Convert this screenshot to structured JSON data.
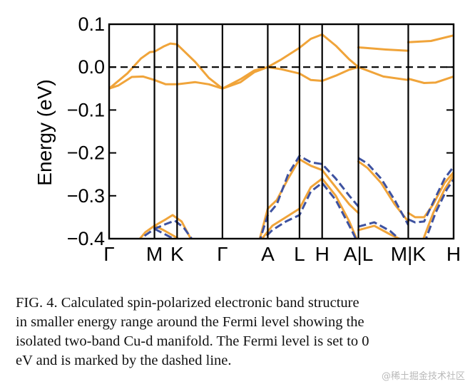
{
  "chart_data": {
    "type": "line",
    "ylabel": "Energy (eV)",
    "ylim": [
      -0.4,
      0.1
    ],
    "y_ticks": [
      "0.1",
      "0.0",
      "−0.1",
      "−0.2",
      "−0.3",
      "−0.4"
    ],
    "y_tick_values": [
      0.1,
      0.0,
      -0.1,
      -0.2,
      -0.3,
      -0.4
    ],
    "x_ticks": [
      "Γ",
      "M",
      "K",
      "Γ",
      "A",
      "L",
      "H",
      "A|L",
      "M|K",
      "H"
    ],
    "x_tick_values": [
      0,
      1,
      1.5,
      2.5,
      3.5,
      4.2,
      4.7,
      5.5,
      6.6,
      7.6
    ],
    "kpath_segments": [
      "Γ-M-K-Γ-A-L-H-A",
      "L-M",
      "K-H"
    ],
    "fermi_level": 0.0,
    "fermi_line_style": "dashed",
    "colors": {
      "spin_up": "#f0a43a",
      "spin_down": "#3e52a0",
      "frame": "#000000"
    },
    "series": [
      {
        "style": "solid",
        "color": "#f0a43a",
        "values": [
          [
            0,
            -0.05
          ],
          [
            0.2,
            -0.043
          ],
          [
            0.5,
            -0.023
          ],
          [
            0.75,
            -0.022
          ],
          [
            1,
            -0.03
          ],
          [
            1.25,
            -0.04
          ],
          [
            1.5,
            -0.04
          ],
          [
            1.9,
            -0.035
          ],
          [
            2.2,
            -0.04
          ],
          [
            2.5,
            -0.05
          ],
          [
            2.9,
            -0.035
          ],
          [
            3.2,
            -0.012
          ],
          [
            3.5,
            0
          ],
          [
            3.8,
            -0.005
          ],
          [
            4.2,
            -0.015
          ],
          [
            4.45,
            -0.03
          ],
          [
            4.7,
            -0.032
          ],
          [
            5.0,
            -0.02
          ],
          [
            5.3,
            -0.006
          ],
          [
            5.5,
            0
          ]
        ]
      },
      {
        "style": "solid",
        "color": "#f0a43a",
        "values": [
          [
            0,
            -0.05
          ],
          [
            0.4,
            -0.015
          ],
          [
            0.7,
            0.02
          ],
          [
            0.9,
            0.035
          ],
          [
            1,
            0.036
          ],
          [
            1.2,
            0.048
          ],
          [
            1.35,
            0.055
          ],
          [
            1.5,
            0.053
          ],
          [
            1.9,
            0.012
          ],
          [
            2.2,
            -0.025
          ],
          [
            2.5,
            -0.05
          ],
          [
            2.9,
            -0.028
          ],
          [
            3.2,
            -0.008
          ],
          [
            3.5,
            0
          ],
          [
            3.8,
            0.018
          ],
          [
            4.2,
            0.045
          ],
          [
            4.45,
            0.066
          ],
          [
            4.7,
            0.076
          ],
          [
            5.0,
            0.05
          ],
          [
            5.3,
            0.018
          ],
          [
            5.5,
            0
          ]
        ]
      },
      {
        "style": "solid",
        "color": "#f0a43a",
        "values": [
          [
            5.5,
            0.046
          ],
          [
            6.1,
            0.041
          ],
          [
            6.6,
            0.038
          ]
        ]
      },
      {
        "style": "solid",
        "color": "#f0a43a",
        "values": [
          [
            5.5,
            0
          ],
          [
            6.05,
            -0.022
          ],
          [
            6.6,
            -0.03
          ]
        ]
      },
      {
        "style": "solid",
        "color": "#f0a43a",
        "values": [
          [
            6.6,
            0.058
          ],
          [
            7.1,
            0.061
          ],
          [
            7.6,
            0.074
          ]
        ]
      },
      {
        "style": "solid",
        "color": "#f0a43a",
        "values": [
          [
            6.6,
            -0.027
          ],
          [
            6.95,
            -0.037
          ],
          [
            7.2,
            -0.036
          ],
          [
            7.6,
            -0.022
          ]
        ]
      },
      {
        "style": "solid",
        "color": "#f0a43a",
        "values": [
          [
            0.6,
            -0.41
          ],
          [
            0.8,
            -0.385
          ],
          [
            1,
            -0.37
          ],
          [
            1.25,
            -0.355
          ],
          [
            1.4,
            -0.345
          ],
          [
            1.6,
            -0.36
          ],
          [
            1.85,
            -0.41
          ]
        ]
      },
      {
        "style": "solid",
        "color": "#f0a43a",
        "values": [
          [
            1,
            -0.37
          ],
          [
            1.2,
            -0.38
          ],
          [
            1.45,
            -0.395
          ],
          [
            1.65,
            -0.41
          ]
        ]
      },
      {
        "style": "dashed",
        "color": "#3e52a0",
        "values": [
          [
            0.6,
            -0.412
          ],
          [
            0.8,
            -0.392
          ],
          [
            1,
            -0.377
          ],
          [
            1.25,
            -0.366
          ],
          [
            1.45,
            -0.358
          ],
          [
            1.65,
            -0.375
          ],
          [
            1.9,
            -0.412
          ]
        ]
      },
      {
        "style": "dashed",
        "color": "#3e52a0",
        "values": [
          [
            1,
            -0.377
          ],
          [
            1.2,
            -0.388
          ],
          [
            1.45,
            -0.402
          ],
          [
            1.6,
            -0.412
          ]
        ]
      },
      {
        "style": "solid",
        "color": "#f0a43a",
        "values": [
          [
            3.3,
            -0.41
          ],
          [
            3.5,
            -0.33
          ],
          [
            3.7,
            -0.31
          ],
          [
            3.95,
            -0.26
          ],
          [
            4.2,
            -0.215
          ],
          [
            4.45,
            -0.23
          ],
          [
            4.7,
            -0.24
          ],
          [
            5.0,
            -0.28
          ],
          [
            5.3,
            -0.32
          ],
          [
            5.5,
            -0.34
          ]
        ]
      },
      {
        "style": "solid",
        "color": "#f0a43a",
        "values": [
          [
            3.3,
            -0.41
          ],
          [
            3.6,
            -0.37
          ],
          [
            3.9,
            -0.35
          ],
          [
            4.2,
            -0.33
          ],
          [
            4.45,
            -0.28
          ],
          [
            4.7,
            -0.26
          ],
          [
            5.0,
            -0.3
          ],
          [
            5.3,
            -0.36
          ],
          [
            5.5,
            -0.41
          ]
        ]
      },
      {
        "style": "dashed",
        "color": "#3e52a0",
        "values": [
          [
            3.3,
            -0.412
          ],
          [
            3.5,
            -0.345
          ],
          [
            3.7,
            -0.32
          ],
          [
            3.95,
            -0.25
          ],
          [
            4.2,
            -0.207
          ],
          [
            4.45,
            -0.222
          ],
          [
            4.7,
            -0.226
          ],
          [
            5.0,
            -0.26
          ],
          [
            5.3,
            -0.3
          ],
          [
            5.5,
            -0.325
          ]
        ]
      },
      {
        "style": "dashed",
        "color": "#3e52a0",
        "values": [
          [
            3.3,
            -0.412
          ],
          [
            3.6,
            -0.38
          ],
          [
            3.9,
            -0.36
          ],
          [
            4.2,
            -0.345
          ],
          [
            4.45,
            -0.29
          ],
          [
            4.7,
            -0.27
          ],
          [
            5.0,
            -0.31
          ],
          [
            5.3,
            -0.37
          ],
          [
            5.5,
            -0.412
          ]
        ]
      },
      {
        "style": "solid",
        "color": "#f0a43a",
        "values": [
          [
            5.5,
            -0.22
          ],
          [
            5.7,
            -0.235
          ],
          [
            6.0,
            -0.27
          ],
          [
            6.3,
            -0.32
          ],
          [
            6.6,
            -0.36
          ]
        ]
      },
      {
        "style": "solid",
        "color": "#f0a43a",
        "values": [
          [
            5.5,
            -0.38
          ],
          [
            5.85,
            -0.37
          ],
          [
            6.2,
            -0.39
          ],
          [
            6.5,
            -0.405
          ]
        ]
      },
      {
        "style": "dashed",
        "color": "#3e52a0",
        "values": [
          [
            5.5,
            -0.212
          ],
          [
            5.7,
            -0.225
          ],
          [
            6.0,
            -0.26
          ],
          [
            6.3,
            -0.31
          ],
          [
            6.6,
            -0.368
          ]
        ]
      },
      {
        "style": "dashed",
        "color": "#3e52a0",
        "values": [
          [
            5.5,
            -0.372
          ],
          [
            5.85,
            -0.362
          ],
          [
            6.2,
            -0.382
          ],
          [
            6.5,
            -0.41
          ]
        ]
      },
      {
        "style": "solid",
        "color": "#f0a43a",
        "values": [
          [
            6.6,
            -0.34
          ],
          [
            6.75,
            -0.35
          ],
          [
            6.95,
            -0.35
          ],
          [
            7.15,
            -0.32
          ],
          [
            7.4,
            -0.27
          ],
          [
            7.6,
            -0.245
          ]
        ]
      },
      {
        "style": "solid",
        "color": "#f0a43a",
        "values": [
          [
            6.9,
            -0.41
          ],
          [
            7.15,
            -0.34
          ],
          [
            7.4,
            -0.285
          ],
          [
            7.6,
            -0.252
          ]
        ]
      },
      {
        "style": "dashed",
        "color": "#3e52a0",
        "values": [
          [
            6.6,
            -0.355
          ],
          [
            6.75,
            -0.362
          ],
          [
            6.95,
            -0.36
          ],
          [
            7.15,
            -0.315
          ],
          [
            7.4,
            -0.26
          ],
          [
            7.6,
            -0.232
          ]
        ]
      },
      {
        "style": "dashed",
        "color": "#3e52a0",
        "values": [
          [
            6.95,
            -0.412
          ],
          [
            7.2,
            -0.34
          ],
          [
            7.45,
            -0.285
          ],
          [
            7.6,
            -0.262
          ]
        ]
      }
    ]
  },
  "caption": {
    "lines": [
      "FIG. 4.  Calculated spin-polarized electronic band structure",
      "in smaller energy range around the Fermi level showing the",
      "isolated two-band Cu-d manifold. The Fermi level is set to 0",
      "eV and is marked by the dashed line."
    ]
  },
  "watermark": "@稀土掘金技术社区"
}
